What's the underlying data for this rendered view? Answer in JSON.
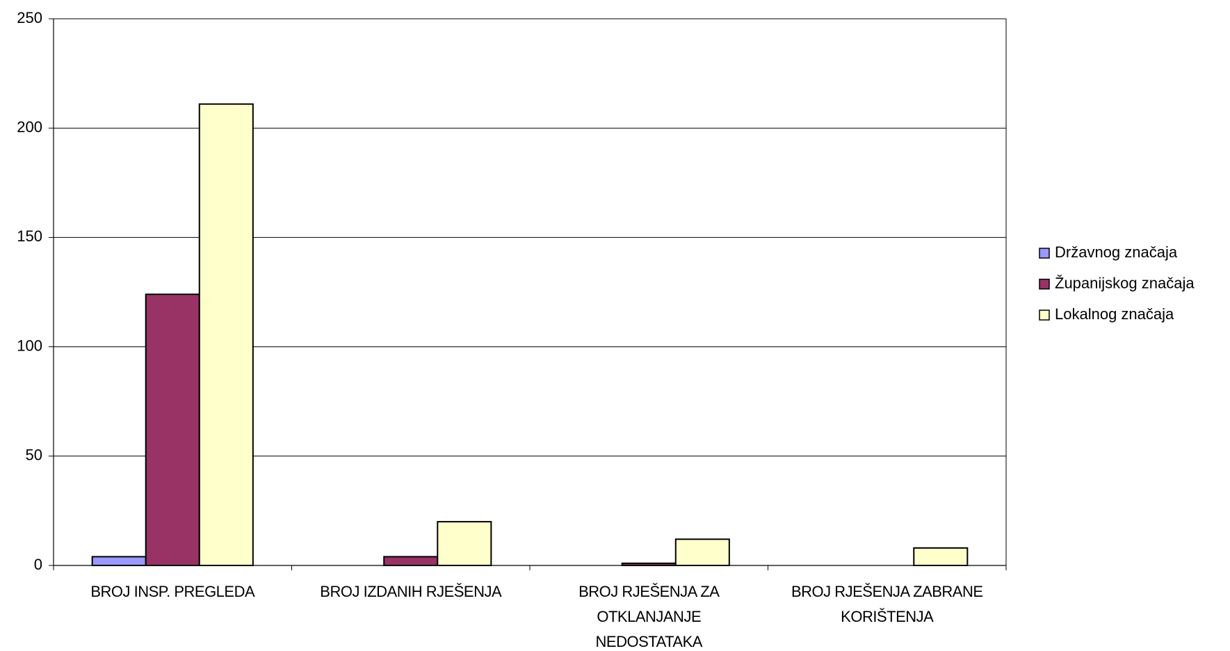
{
  "chart_data": {
    "type": "bar",
    "categories": [
      "BROJ INSP. PREGLEDA",
      "BROJ IZDANIH RJEŠENJA",
      "BROJ RJEŠENJA ZA OTKLANJANJE NEDOSTATAKA",
      "BROJ RJEŠENJA ZABRANE KORIŠTENJA"
    ],
    "series": [
      {
        "name": "Državnog značaja",
        "color": "#9999ff",
        "values": [
          4,
          0,
          0,
          0
        ]
      },
      {
        "name": "Županijskog značaja",
        "color": "#993366",
        "values": [
          124,
          4,
          1,
          0
        ]
      },
      {
        "name": "Lokalnog značaja",
        "color": "#ffffcc",
        "values": [
          211,
          20,
          12,
          8
        ]
      }
    ],
    "ylim": [
      0,
      250
    ],
    "yticks": [
      0,
      50,
      100,
      150,
      200,
      250
    ],
    "grid": true,
    "legend": "right"
  }
}
